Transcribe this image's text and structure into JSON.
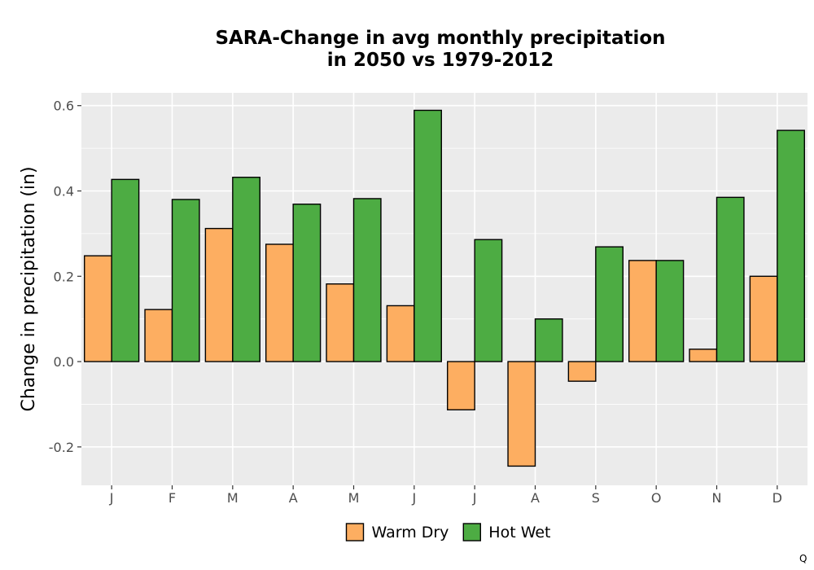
{
  "chart_data": {
    "type": "bar",
    "title_line1": "SARA-Change in avg monthly precipitation",
    "title_line2": "in 2050 vs 1979-2012",
    "xlabel": "",
    "ylabel": "Change in precipitation (in)",
    "ylim": [
      -0.29,
      0.63
    ],
    "yticks": [
      "-0.2",
      "0.0",
      "0.2",
      "0.4",
      "0.6"
    ],
    "grid": true,
    "legend_position": "bottom",
    "categories": [
      "J",
      "F",
      "M",
      "A",
      "M",
      "J",
      "J",
      "A",
      "S",
      "O",
      "N",
      "D"
    ],
    "series": [
      {
        "name": "Warm Dry",
        "color": "#fdae61",
        "values": [
          0.248,
          0.122,
          0.312,
          0.275,
          0.182,
          0.131,
          -0.113,
          -0.245,
          -0.046,
          0.237,
          0.029,
          0.2
        ]
      },
      {
        "name": "Hot Wet",
        "color": "#4dac43",
        "values": [
          0.427,
          0.38,
          0.432,
          0.369,
          0.382,
          0.589,
          0.286,
          0.1,
          0.269,
          0.237,
          0.385,
          0.542
        ]
      }
    ]
  },
  "corner_mark": "Q"
}
